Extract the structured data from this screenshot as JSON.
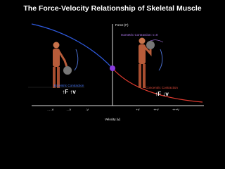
{
  "title": "The Force-Velocity Relationship of Skeletal Muscle",
  "y_axis_label": "Force (F)",
  "isometric_label": "Isometric Contraction: v=0",
  "eccentric": {
    "label": "Eccentric Contraction",
    "symbol": "↑F ↑v"
  },
  "concentric": {
    "label": "Concentric Contraction",
    "symbol": "↑F ↓v"
  },
  "x_axis_label": "Velocity (v)",
  "x_ticks": [
    "- - -V",
    "- -V",
    "-V",
    "+V",
    "++V",
    "+++V"
  ]
}
